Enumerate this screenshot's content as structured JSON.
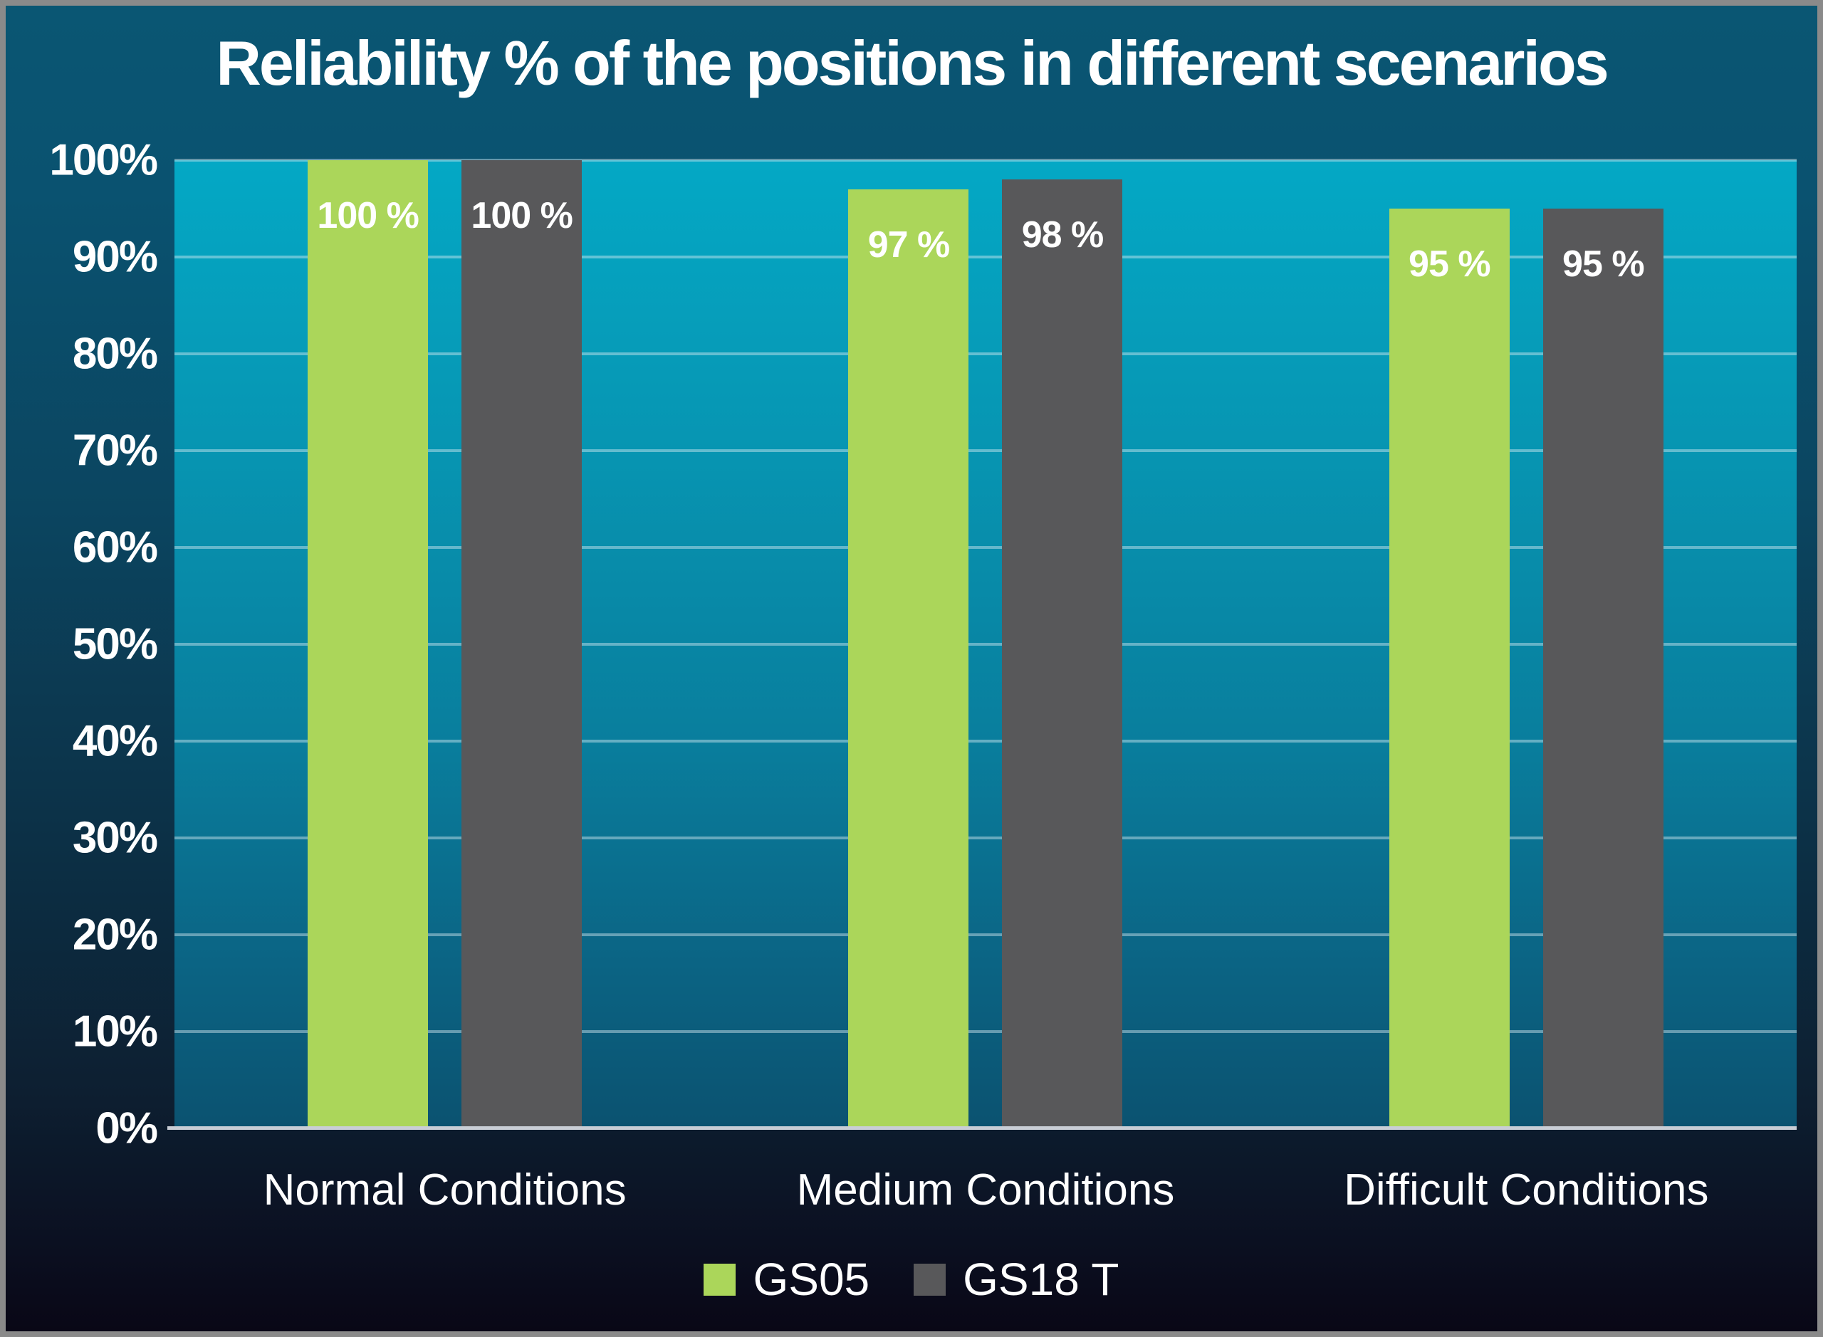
{
  "title": "Reliability % of the positions in different scenarios",
  "chart_data": {
    "type": "bar",
    "title": "Reliability % of the positions in different scenarios",
    "categories": [
      "Normal Conditions",
      "Medium Conditions",
      "Difficult Conditions"
    ],
    "series": [
      {
        "name": "GS05",
        "color": "#abd65a",
        "values": [
          100,
          97,
          95
        ],
        "data_labels": [
          "100 %",
          "97 %",
          "95 %"
        ]
      },
      {
        "name": "GS18 T",
        "color": "#58585a",
        "values": [
          100,
          98,
          95
        ],
        "data_labels": [
          "100 %",
          "98 %",
          "95 %"
        ]
      }
    ],
    "y_axis": {
      "min": 0,
      "max": 100,
      "tick_step": 10,
      "tick_labels": [
        "0%",
        "10%",
        "20%",
        "30%",
        "40%",
        "50%",
        "60%",
        "70%",
        "80%",
        "90%",
        "100%"
      ],
      "grid": true
    },
    "legend": {
      "position": "bottom",
      "entries": [
        "GS05",
        "GS18 T"
      ]
    },
    "colors": {
      "series_gs05": "#abd65a",
      "series_gs18t": "#58585a",
      "plot_background_top": "#04a8c5",
      "plot_background_bottom": "#0b5270",
      "outer_background_top": "#0a5673",
      "outer_background_bottom": "#090716",
      "gridline": "rgba(214,236,242,0.45)",
      "axis_line": "#c9ced6",
      "text": "#ffffff",
      "frame_border": "#8a8a8a"
    }
  }
}
